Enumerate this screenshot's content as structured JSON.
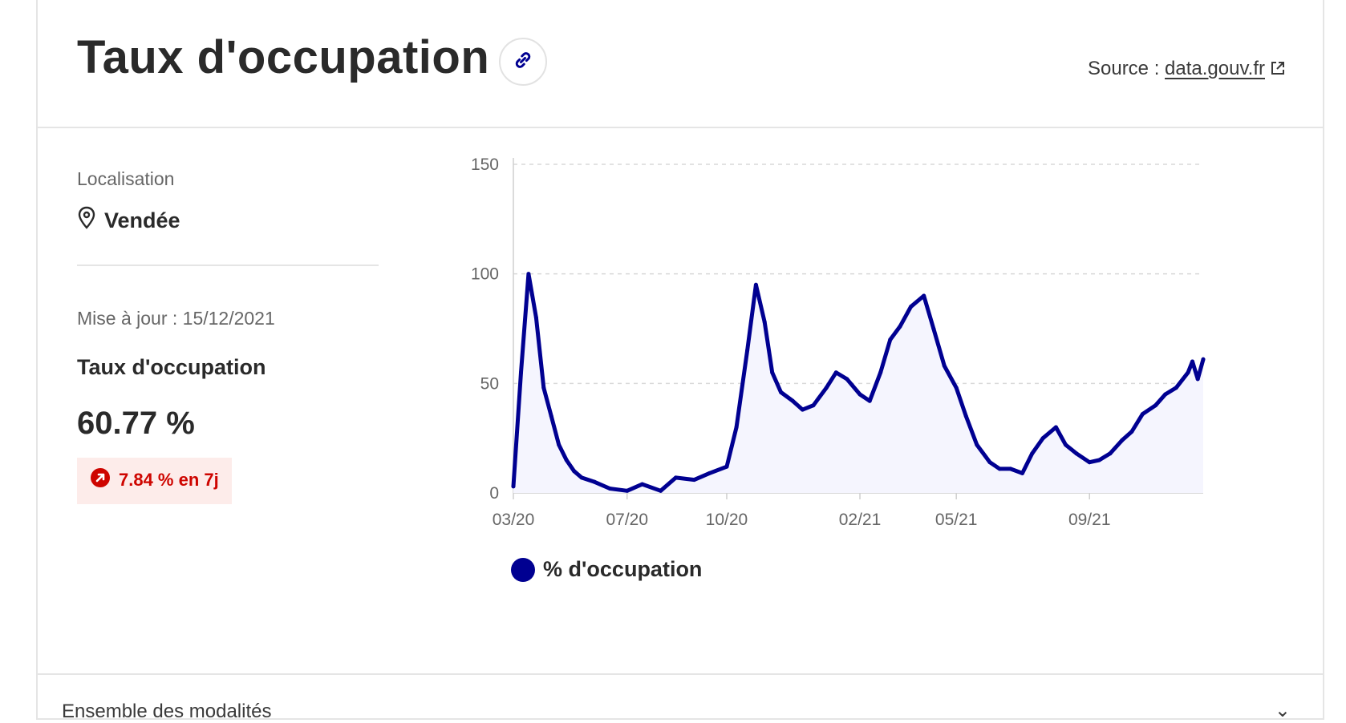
{
  "header": {
    "title": "Taux d'occupation",
    "source_prefix": "Source : ",
    "source_link": "data.gouv.fr"
  },
  "left": {
    "location_label": "Localisation",
    "location_value": "Vendée",
    "updated": "Mise à jour : 15/12/2021",
    "metric_label": "Taux d'occupation",
    "metric_value": "60.77 %",
    "badge": "7.84 % en 7j"
  },
  "footer": {
    "text": "Ensemble des modalités",
    "chevron": "⌄"
  },
  "colors": {
    "series": "#000091",
    "badge_bg": "#fdecea",
    "badge_fg": "#ce0500"
  },
  "chart_data": {
    "type": "area",
    "xlabel": "",
    "ylabel": "",
    "ylim": [
      0,
      150
    ],
    "yticks": [
      0,
      50,
      100,
      150
    ],
    "x_ticks": [
      {
        "date": "2020-03-18",
        "label": "03/20"
      },
      {
        "date": "2020-07-01",
        "label": "07/20"
      },
      {
        "date": "2020-10-01",
        "label": "10/20"
      },
      {
        "date": "2021-02-01",
        "label": "02/21"
      },
      {
        "date": "2021-05-01",
        "label": "05/21"
      },
      {
        "date": "2021-09-01",
        "label": "09/21"
      }
    ],
    "grid": "horizontal-dashed",
    "legend_position": "bottom-left",
    "series": [
      {
        "name": "% d'occupation",
        "color": "#000091",
        "x": [
          "2020-03-18",
          "2020-03-25",
          "2020-04-01",
          "2020-04-08",
          "2020-04-15",
          "2020-04-22",
          "2020-04-29",
          "2020-05-06",
          "2020-05-13",
          "2020-05-20",
          "2020-06-01",
          "2020-06-15",
          "2020-07-01",
          "2020-07-15",
          "2020-08-01",
          "2020-08-15",
          "2020-09-01",
          "2020-09-15",
          "2020-10-01",
          "2020-10-10",
          "2020-10-20",
          "2020-10-28",
          "2020-11-05",
          "2020-11-12",
          "2020-11-20",
          "2020-12-01",
          "2020-12-10",
          "2020-12-20",
          "2021-01-01",
          "2021-01-10",
          "2021-01-20",
          "2021-02-01",
          "2021-02-10",
          "2021-02-20",
          "2021-03-01",
          "2021-03-10",
          "2021-03-20",
          "2021-04-01",
          "2021-04-10",
          "2021-04-20",
          "2021-05-01",
          "2021-05-10",
          "2021-05-20",
          "2021-06-01",
          "2021-06-10",
          "2021-06-20",
          "2021-07-01",
          "2021-07-10",
          "2021-07-20",
          "2021-08-01",
          "2021-08-10",
          "2021-08-20",
          "2021-09-01",
          "2021-09-10",
          "2021-09-20",
          "2021-10-01",
          "2021-10-10",
          "2021-10-20",
          "2021-11-01",
          "2021-11-10",
          "2021-11-20",
          "2021-12-01",
          "2021-12-05",
          "2021-12-10",
          "2021-12-15"
        ],
        "values": [
          3,
          55,
          100,
          80,
          48,
          35,
          22,
          15,
          10,
          7,
          5,
          2,
          1,
          4,
          1,
          7,
          6,
          9,
          12,
          30,
          65,
          95,
          78,
          55,
          46,
          42,
          38,
          40,
          48,
          55,
          52,
          45,
          42,
          55,
          70,
          76,
          85,
          90,
          75,
          58,
          48,
          35,
          22,
          14,
          11,
          11,
          9,
          18,
          25,
          30,
          22,
          18,
          14,
          15,
          18,
          24,
          28,
          36,
          40,
          45,
          48,
          55,
          60,
          52,
          61
        ]
      }
    ]
  }
}
